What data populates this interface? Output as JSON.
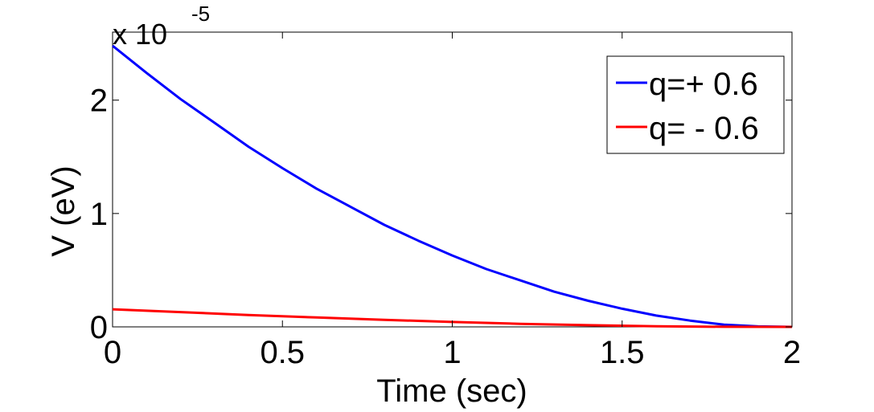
{
  "chart_data": {
    "type": "line",
    "title": "",
    "xlabel": "Time (sec)",
    "ylabel": "V (eV)",
    "y_multiplier_label": {
      "base": "x 10",
      "exponent": "-5"
    },
    "xlim": [
      0,
      2
    ],
    "ylim": [
      0,
      2.6
    ],
    "x_ticks": [
      0,
      0.5,
      1,
      1.5,
      2
    ],
    "x_tick_labels": [
      "0",
      "0.5",
      "1",
      "1.5",
      "2"
    ],
    "y_ticks": [
      0,
      1,
      2
    ],
    "y_tick_labels": [
      "0",
      "1",
      "2"
    ],
    "grid": false,
    "legend_position": "top-right",
    "series": [
      {
        "name": "q=+ 0.6",
        "color": "#0000ff",
        "x": [
          0,
          0.1,
          0.2,
          0.3,
          0.4,
          0.5,
          0.6,
          0.7,
          0.8,
          0.9,
          1.0,
          1.1,
          1.2,
          1.3,
          1.4,
          1.5,
          1.6,
          1.7,
          1.8,
          1.9,
          2.0
        ],
        "y": [
          2.48,
          2.24,
          2.01,
          1.8,
          1.59,
          1.4,
          1.22,
          1.06,
          0.9,
          0.76,
          0.63,
          0.51,
          0.41,
          0.31,
          0.23,
          0.16,
          0.1,
          0.055,
          0.02,
          0.004,
          0.0
        ]
      },
      {
        "name": "q= - 0.6",
        "color": "#ff0000",
        "x": [
          0,
          0.2,
          0.4,
          0.6,
          0.8,
          1.0,
          1.2,
          1.4,
          1.6,
          1.8,
          2.0
        ],
        "y": [
          0.155,
          0.13,
          0.105,
          0.083,
          0.062,
          0.043,
          0.027,
          0.015,
          0.006,
          0.001,
          0.0
        ]
      }
    ]
  }
}
